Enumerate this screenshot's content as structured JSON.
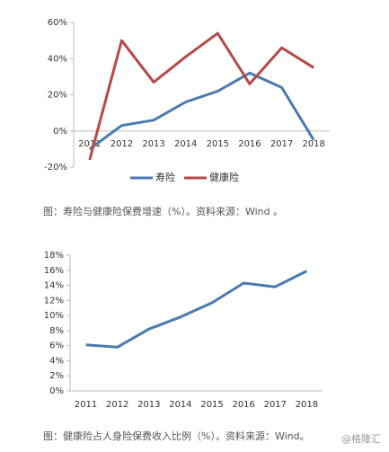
{
  "chart_data": [
    {
      "type": "line",
      "categories": [
        "2011",
        "2012",
        "2013",
        "2014",
        "2015",
        "2016",
        "2017",
        "2018"
      ],
      "series": [
        {
          "name": "寿险",
          "color": "#4a7ab0",
          "values": [
            -10,
            3,
            6,
            16,
            22,
            32,
            24,
            -5
          ]
        },
        {
          "name": "健康险",
          "color": "#b54a4a",
          "values": [
            -16,
            50,
            27,
            41,
            54,
            26,
            46,
            35
          ]
        }
      ],
      "ylim": [
        -20,
        60
      ],
      "yticks": [
        {
          "value": -20,
          "label": "-20%"
        },
        {
          "value": 0,
          "label": "0%"
        },
        {
          "value": 20,
          "label": "20%"
        },
        {
          "value": 40,
          "label": "40%"
        },
        {
          "value": 60,
          "label": "60%"
        }
      ],
      "legend": "bottom",
      "caption": "图：寿险与健康险保费增速（%）。资料来源：Wind 。"
    },
    {
      "type": "line",
      "categories": [
        "2011",
        "2012",
        "2013",
        "2014",
        "2015",
        "2016",
        "2017",
        "2018"
      ],
      "series": [
        {
          "color": "#4a7ab0",
          "values": [
            6.1,
            5.8,
            8.2,
            9.8,
            11.7,
            14.3,
            13.8,
            15.9
          ]
        }
      ],
      "ylim": [
        0,
        18
      ],
      "yticks": [
        {
          "value": 0,
          "label": "0%"
        },
        {
          "value": 2,
          "label": "2%"
        },
        {
          "value": 4,
          "label": "4%"
        },
        {
          "value": 6,
          "label": "6%"
        },
        {
          "value": 8,
          "label": "8%"
        },
        {
          "value": 10,
          "label": "10%"
        },
        {
          "value": 12,
          "label": "12%"
        },
        {
          "value": 14,
          "label": "14%"
        },
        {
          "value": 16,
          "label": "16%"
        },
        {
          "value": 18,
          "label": "18%"
        }
      ],
      "caption": "图：健康险占人身险保费收入比例（%）。资料来源：Wind。"
    }
  ],
  "watermark": "@格隆汇"
}
